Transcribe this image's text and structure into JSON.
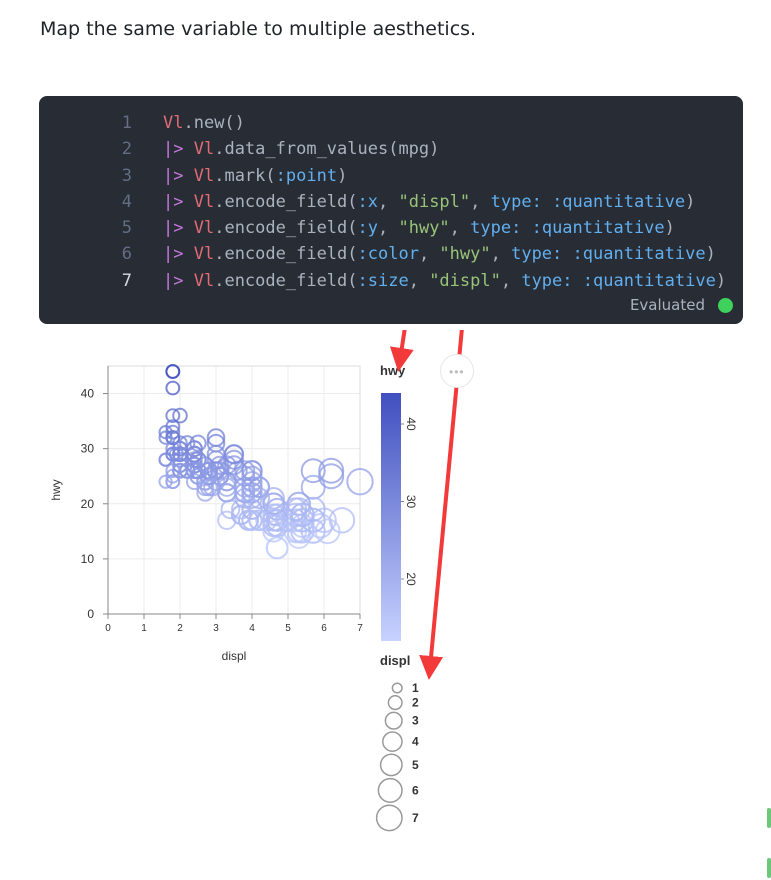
{
  "description": "Map the same variable to multiple aesthetics.",
  "code_cell": {
    "lines": [
      {
        "n": "1",
        "tokens": [
          [
            "mod",
            "Vl"
          ],
          [
            "fn",
            ".new()"
          ]
        ]
      },
      {
        "n": "2",
        "tokens": [
          [
            "kw",
            "|>"
          ],
          [
            "pn",
            " "
          ],
          [
            "mod",
            "Vl"
          ],
          [
            "fn",
            ".data_from_values(mpg)"
          ]
        ]
      },
      {
        "n": "3",
        "tokens": [
          [
            "kw",
            "|>"
          ],
          [
            "pn",
            " "
          ],
          [
            "mod",
            "Vl"
          ],
          [
            "fn",
            ".mark("
          ],
          [
            "at",
            ":point"
          ],
          [
            "fn",
            ")"
          ]
        ]
      },
      {
        "n": "4",
        "tokens": [
          [
            "kw",
            "|>"
          ],
          [
            "pn",
            " "
          ],
          [
            "mod",
            "Vl"
          ],
          [
            "fn",
            ".encode_field("
          ],
          [
            "at",
            ":x"
          ],
          [
            "pn",
            ", "
          ],
          [
            "st",
            "\"displ\""
          ],
          [
            "pn",
            ", "
          ],
          [
            "at",
            "type:"
          ],
          [
            "pn",
            " "
          ],
          [
            "at",
            ":quantitative"
          ],
          [
            "fn",
            ")"
          ]
        ]
      },
      {
        "n": "5",
        "tokens": [
          [
            "kw",
            "|>"
          ],
          [
            "pn",
            " "
          ],
          [
            "mod",
            "Vl"
          ],
          [
            "fn",
            ".encode_field("
          ],
          [
            "at",
            ":y"
          ],
          [
            "pn",
            ", "
          ],
          [
            "st",
            "\"hwy\""
          ],
          [
            "pn",
            ", "
          ],
          [
            "at",
            "type:"
          ],
          [
            "pn",
            " "
          ],
          [
            "at",
            ":quantitative"
          ],
          [
            "fn",
            ")"
          ]
        ]
      },
      {
        "n": "6",
        "tokens": [
          [
            "kw",
            "|>"
          ],
          [
            "pn",
            " "
          ],
          [
            "mod",
            "Vl"
          ],
          [
            "fn",
            ".encode_field("
          ],
          [
            "at",
            ":color"
          ],
          [
            "pn",
            ", "
          ],
          [
            "st",
            "\"hwy\""
          ],
          [
            "pn",
            ", "
          ],
          [
            "at",
            "type:"
          ],
          [
            "pn",
            " "
          ],
          [
            "at",
            ":quantitative"
          ],
          [
            "fn",
            ")"
          ]
        ]
      },
      {
        "n": "7",
        "tokens": [
          [
            "kw",
            "|>"
          ],
          [
            "pn",
            " "
          ],
          [
            "mod",
            "Vl"
          ],
          [
            "fn",
            ".encode_field("
          ],
          [
            "at",
            ":size"
          ],
          [
            "pn",
            ", "
          ],
          [
            "st",
            "\"displ\""
          ],
          [
            "pn",
            ", "
          ],
          [
            "at",
            "type:"
          ],
          [
            "pn",
            " "
          ],
          [
            "at",
            ":quantitative"
          ],
          [
            "fn",
            ")"
          ]
        ]
      }
    ],
    "active_line": "7",
    "status": "Evaluated",
    "status_color": "#3fd15b"
  },
  "chart_data": {
    "type": "scatter",
    "xlabel": "displ",
    "ylabel": "hwy",
    "xlim": [
      0,
      7
    ],
    "ylim": [
      0,
      45
    ],
    "x_ticks": [
      "0",
      "1",
      "2",
      "3",
      "4",
      "5",
      "6",
      "7"
    ],
    "y_ticks": [
      "0",
      "10",
      "20",
      "30",
      "40"
    ],
    "grid": true,
    "points": [
      [
        1.8,
        29
      ],
      [
        1.8,
        29
      ],
      [
        2.0,
        31
      ],
      [
        2.0,
        30
      ],
      [
        2.8,
        26
      ],
      [
        2.8,
        26
      ],
      [
        3.1,
        27
      ],
      [
        1.8,
        26
      ],
      [
        1.8,
        25
      ],
      [
        2.0,
        28
      ],
      [
        2.0,
        27
      ],
      [
        2.8,
        25
      ],
      [
        2.8,
        25
      ],
      [
        3.1,
        25
      ],
      [
        3.1,
        25
      ],
      [
        2.8,
        25
      ],
      [
        3.1,
        25
      ],
      [
        4.2,
        23
      ],
      [
        5.3,
        20
      ],
      [
        5.3,
        15
      ],
      [
        5.3,
        20
      ],
      [
        5.7,
        17
      ],
      [
        6.0,
        17
      ],
      [
        5.7,
        26
      ],
      [
        5.7,
        23
      ],
      [
        6.2,
        26
      ],
      [
        6.2,
        25
      ],
      [
        7.0,
        24
      ],
      [
        5.3,
        19
      ],
      [
        5.3,
        14
      ],
      [
        5.7,
        15
      ],
      [
        6.5,
        17
      ],
      [
        2.4,
        27
      ],
      [
        2.4,
        30
      ],
      [
        3.1,
        26
      ],
      [
        3.5,
        29
      ],
      [
        3.6,
        26
      ],
      [
        2.4,
        24
      ],
      [
        3.0,
        24
      ],
      [
        3.3,
        22
      ],
      [
        3.3,
        22
      ],
      [
        3.3,
        24
      ],
      [
        3.3,
        24
      ],
      [
        3.3,
        17
      ],
      [
        3.8,
        22
      ],
      [
        3.8,
        21
      ],
      [
        3.8,
        23
      ],
      [
        4.0,
        23
      ],
      [
        3.7,
        19
      ],
      [
        3.7,
        18
      ],
      [
        3.9,
        17
      ],
      [
        3.9,
        17
      ],
      [
        4.7,
        19
      ],
      [
        4.7,
        19
      ],
      [
        4.7,
        12
      ],
      [
        4.7,
        17
      ],
      [
        5.2,
        15
      ],
      [
        5.2,
        17
      ],
      [
        3.9,
        17
      ],
      [
        4.7,
        12
      ],
      [
        4.7,
        17
      ],
      [
        4.7,
        16
      ],
      [
        5.2,
        18
      ],
      [
        5.7,
        15
      ],
      [
        5.9,
        16
      ],
      [
        4.7,
        12
      ],
      [
        4.7,
        17
      ],
      [
        4.7,
        17
      ],
      [
        4.7,
        16
      ],
      [
        5.7,
        17
      ],
      [
        6.1,
        15
      ],
      [
        4.0,
        19
      ],
      [
        4.2,
        17
      ],
      [
        4.4,
        17
      ],
      [
        4.6,
        16
      ],
      [
        5.4,
        17
      ],
      [
        5.4,
        15
      ],
      [
        5.4,
        17
      ],
      [
        4.0,
        26
      ],
      [
        4.0,
        25
      ],
      [
        4.0,
        26
      ],
      [
        4.0,
        24
      ],
      [
        4.0,
        21
      ],
      [
        4.0,
        22
      ],
      [
        4.0,
        23
      ],
      [
        4.0,
        22
      ],
      [
        4.6,
        20
      ],
      [
        5.0,
        17
      ],
      [
        4.2,
        21
      ],
      [
        4.2,
        23
      ],
      [
        4.6,
        21
      ],
      [
        4.6,
        20
      ],
      [
        4.6,
        20
      ],
      [
        5.4,
        18
      ],
      [
        5.4,
        16
      ],
      [
        3.8,
        26
      ],
      [
        3.8,
        25
      ],
      [
        4.0,
        17
      ],
      [
        4.0,
        17
      ],
      [
        4.6,
        18
      ],
      [
        4.6,
        17
      ],
      [
        4.6,
        17
      ],
      [
        4.6,
        16
      ],
      [
        5.4,
        18
      ],
      [
        1.6,
        28
      ],
      [
        1.6,
        24
      ],
      [
        1.6,
        28
      ],
      [
        1.6,
        33
      ],
      [
        1.6,
        32
      ],
      [
        1.8,
        32
      ],
      [
        1.8,
        29
      ],
      [
        1.8,
        32
      ],
      [
        1.8,
        34
      ],
      [
        1.8,
        36
      ],
      [
        2.0,
        36
      ],
      [
        2.4,
        29
      ],
      [
        2.4,
        26
      ],
      [
        2.4,
        27
      ],
      [
        2.4,
        30
      ],
      [
        2.5,
        26
      ],
      [
        2.5,
        26
      ],
      [
        3.3,
        23
      ],
      [
        2.0,
        26
      ],
      [
        2.0,
        29
      ],
      [
        2.0,
        26
      ],
      [
        2.0,
        27
      ],
      [
        2.7,
        24
      ],
      [
        2.7,
        24
      ],
      [
        3.0,
        26
      ],
      [
        3.7,
        18
      ],
      [
        4.0,
        19
      ],
      [
        4.7,
        18
      ],
      [
        5.7,
        19
      ],
      [
        1.8,
        44
      ],
      [
        1.8,
        41
      ],
      [
        1.8,
        44
      ],
      [
        2.0,
        26
      ],
      [
        2.8,
        26
      ],
      [
        1.9,
        29
      ],
      [
        2.5,
        31
      ],
      [
        2.5,
        25
      ],
      [
        3.4,
        19
      ],
      [
        3.0,
        26
      ],
      [
        2.7,
        27
      ],
      [
        2.2,
        31
      ],
      [
        2.2,
        26
      ],
      [
        2.4,
        29
      ],
      [
        2.4,
        27
      ],
      [
        3.0,
        31
      ],
      [
        3.0,
        32
      ],
      [
        3.5,
        27
      ],
      [
        2.2,
        26
      ],
      [
        2.2,
        26
      ],
      [
        2.4,
        28
      ],
      [
        2.4,
        26
      ],
      [
        3.0,
        29
      ],
      [
        3.0,
        28
      ],
      [
        3.3,
        27
      ],
      [
        1.8,
        24
      ],
      [
        1.8,
        24
      ],
      [
        2.0,
        29
      ],
      [
        2.0,
        29
      ],
      [
        2.0,
        26
      ],
      [
        2.5,
        28
      ],
      [
        2.5,
        26
      ],
      [
        2.5,
        26
      ],
      [
        2.5,
        25
      ],
      [
        2.7,
        22
      ],
      [
        2.7,
        23
      ],
      [
        2.8,
        25
      ],
      [
        2.8,
        26
      ],
      [
        4.6,
        15
      ],
      [
        5.4,
        15
      ],
      [
        1.8,
        32
      ],
      [
        1.8,
        33
      ],
      [
        2.4,
        29
      ],
      [
        3.5,
        28
      ],
      [
        3.5,
        29
      ],
      [
        3.3,
        22
      ],
      [
        3.8,
        22
      ],
      [
        4.2,
        17
      ],
      [
        5.2,
        19
      ],
      [
        2.0,
        30
      ],
      [
        2.5,
        28
      ],
      [
        2.8,
        23
      ],
      [
        2.8,
        26
      ],
      [
        2.9,
        23
      ],
      [
        1.8,
        32
      ],
      [
        1.8,
        30
      ]
    ],
    "color_legend": {
      "title": "hwy",
      "ticks": [
        "40",
        "30",
        "20"
      ],
      "range": [
        12,
        44
      ],
      "color_low": "#c7d2ff",
      "color_high": "#3f4fbf"
    },
    "size_legend": {
      "title": "displ",
      "labels": [
        "1",
        "2",
        "3",
        "4",
        "5",
        "6",
        "7"
      ]
    }
  },
  "annotation_color": "#f23a3a"
}
